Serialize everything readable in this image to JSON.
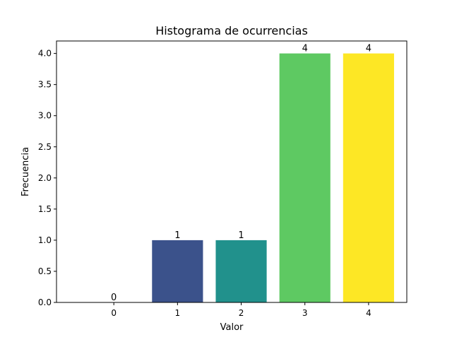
{
  "chart_data": {
    "type": "bar",
    "title": "Histograma de ocurrencias",
    "xlabel": "Valor",
    "ylabel": "Frecuencia",
    "categories": [
      0,
      1,
      2,
      3,
      4
    ],
    "values": [
      0,
      1,
      1,
      4,
      4
    ],
    "data_labels": [
      "0",
      "1",
      "1",
      "4",
      "4"
    ],
    "x_ticks": [
      "0",
      "1",
      "2",
      "3",
      "4"
    ],
    "y_ticks": [
      "0.0",
      "0.5",
      "1.0",
      "1.5",
      "2.0",
      "2.5",
      "3.0",
      "3.5",
      "4.0"
    ],
    "ylim": [
      0,
      4.2
    ],
    "xlim": [
      -0.9,
      4.6
    ],
    "grid": false,
    "colors": [
      "#440154",
      "#3b528b",
      "#21918c",
      "#5ec962",
      "#fde725"
    ]
  }
}
